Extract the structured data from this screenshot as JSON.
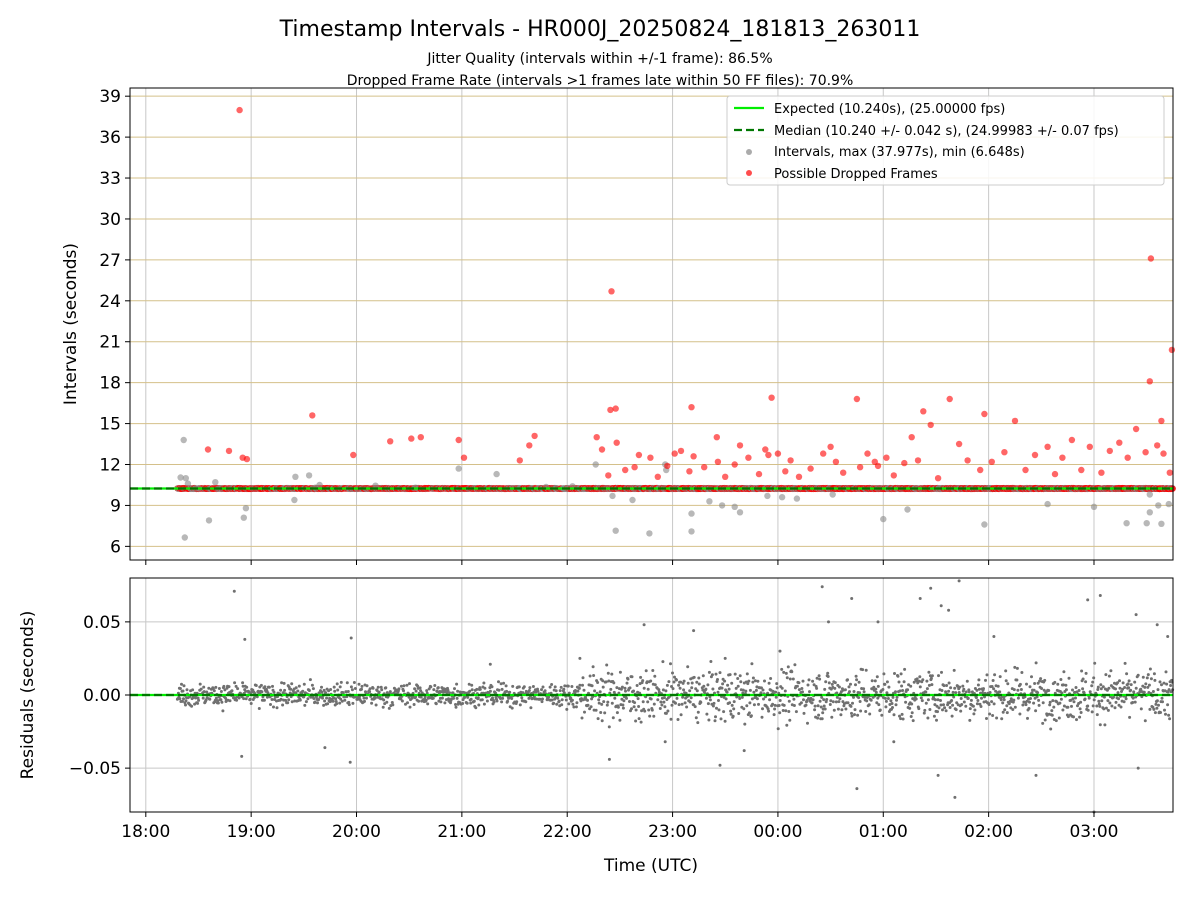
{
  "chart_data": [
    {
      "type": "scatter",
      "title": "Timestamp Intervals - HR000J_20250824_181813_263011",
      "subtitle_lines": [
        "Jitter Quality (intervals within +/-1 frame): 86.5%",
        "Dropped Frame Rate (intervals >1 frames late within 50 FF files): 70.9%"
      ],
      "ylabel": "Intervals (seconds)",
      "xlim": [
        17.85,
        27.75
      ],
      "ylim": [
        5.0,
        39.6
      ],
      "yticks": [
        6,
        9,
        12,
        15,
        18,
        21,
        24,
        27,
        30,
        33,
        36,
        39
      ],
      "ytick_labels": [
        "6",
        "9",
        "12",
        "15",
        "18",
        "21",
        "24",
        "27",
        "30",
        "33",
        "36",
        "39"
      ],
      "grid": true,
      "legend_position": "top-right",
      "expected_interval": 10.24,
      "median_interval": 10.24,
      "series": [
        {
          "name": "Expected (10.240s), (25.00000 fps)",
          "kind": "line",
          "color": "#00ee00",
          "style": "solid"
        },
        {
          "name": "Median (10.240 +/- 0.042 s), (24.99983 +/- 0.07 fps)",
          "kind": "line",
          "color": "#007700",
          "style": "dashed"
        },
        {
          "name": "Intervals, max (37.977s), min (6.648s)",
          "kind": "scatter",
          "color": "#888888",
          "points": [
            [
              18.33,
              11.05
            ],
            [
              18.36,
              13.8
            ],
            [
              18.37,
              6.65
            ],
            [
              18.38,
              11.0
            ],
            [
              18.4,
              10.6
            ],
            [
              18.5,
              10.25
            ],
            [
              18.6,
              7.9
            ],
            [
              18.66,
              10.7
            ],
            [
              18.93,
              8.1
            ],
            [
              18.95,
              8.8
            ],
            [
              19.41,
              9.4
            ],
            [
              19.42,
              11.1
            ],
            [
              19.55,
              11.2
            ],
            [
              19.61,
              10.3
            ],
            [
              19.65,
              10.5
            ],
            [
              20.18,
              10.45
            ],
            [
              20.56,
              10.3
            ],
            [
              20.97,
              11.7
            ],
            [
              21.33,
              11.3
            ],
            [
              21.8,
              10.35
            ],
            [
              22.05,
              10.4
            ],
            [
              22.27,
              12.0
            ],
            [
              22.43,
              9.7
            ],
            [
              22.46,
              7.15
            ],
            [
              22.62,
              9.4
            ],
            [
              22.78,
              6.95
            ],
            [
              22.93,
              12.0
            ],
            [
              22.94,
              11.6
            ],
            [
              23.18,
              8.4
            ],
            [
              23.18,
              7.1
            ],
            [
              23.35,
              9.3
            ],
            [
              23.47,
              9.0
            ],
            [
              23.59,
              8.9
            ],
            [
              23.64,
              8.5
            ],
            [
              23.9,
              9.7
            ],
            [
              24.04,
              9.6
            ],
            [
              24.18,
              9.5
            ],
            [
              24.52,
              9.8
            ],
            [
              25.0,
              8.0
            ],
            [
              25.23,
              8.7
            ],
            [
              25.96,
              7.6
            ],
            [
              26.56,
              9.1
            ],
            [
              27.0,
              8.9
            ],
            [
              27.31,
              7.7
            ],
            [
              27.5,
              7.7
            ],
            [
              27.53,
              8.5
            ],
            [
              27.53,
              9.8
            ],
            [
              27.61,
              9.0
            ],
            [
              27.64,
              7.65
            ],
            [
              27.71,
              9.1
            ]
          ]
        },
        {
          "name": "Possible Dropped Frames",
          "kind": "scatter",
          "color": "#ff0000",
          "points": [
            [
              18.89,
              37.98
            ],
            [
              18.59,
              13.1
            ],
            [
              18.79,
              13.0
            ],
            [
              18.92,
              12.5
            ],
            [
              18.96,
              12.4
            ],
            [
              19.58,
              15.6
            ],
            [
              19.97,
              12.7
            ],
            [
              20.32,
              13.7
            ],
            [
              20.52,
              13.9
            ],
            [
              20.61,
              14.0
            ],
            [
              20.97,
              13.8
            ],
            [
              21.02,
              12.5
            ],
            [
              21.55,
              12.3
            ],
            [
              21.64,
              13.4
            ],
            [
              21.69,
              14.1
            ],
            [
              22.28,
              14.0
            ],
            [
              22.33,
              13.1
            ],
            [
              22.39,
              11.2
            ],
            [
              22.41,
              16.0
            ],
            [
              22.42,
              24.7
            ],
            [
              22.46,
              16.1
            ],
            [
              22.47,
              13.6
            ],
            [
              22.55,
              11.6
            ],
            [
              22.64,
              11.8
            ],
            [
              22.68,
              12.7
            ],
            [
              22.79,
              12.5
            ],
            [
              22.86,
              11.1
            ],
            [
              22.95,
              11.9
            ],
            [
              23.02,
              12.8
            ],
            [
              23.08,
              13.0
            ],
            [
              23.16,
              11.5
            ],
            [
              23.18,
              16.2
            ],
            [
              23.2,
              12.6
            ],
            [
              23.3,
              11.8
            ],
            [
              23.42,
              14.0
            ],
            [
              23.43,
              12.2
            ],
            [
              23.5,
              11.1
            ],
            [
              23.59,
              12.0
            ],
            [
              23.64,
              13.4
            ],
            [
              23.72,
              12.5
            ],
            [
              23.82,
              11.3
            ],
            [
              23.88,
              13.1
            ],
            [
              23.91,
              12.7
            ],
            [
              23.94,
              16.9
            ],
            [
              24.0,
              12.8
            ],
            [
              24.07,
              11.5
            ],
            [
              24.12,
              12.3
            ],
            [
              24.2,
              11.1
            ],
            [
              24.31,
              11.7
            ],
            [
              24.43,
              12.8
            ],
            [
              24.5,
              13.3
            ],
            [
              24.55,
              12.2
            ],
            [
              24.62,
              11.4
            ],
            [
              24.75,
              16.8
            ],
            [
              24.78,
              11.8
            ],
            [
              24.85,
              12.8
            ],
            [
              24.92,
              12.2
            ],
            [
              24.95,
              11.9
            ],
            [
              25.03,
              12.5
            ],
            [
              25.1,
              11.2
            ],
            [
              25.2,
              12.1
            ],
            [
              25.27,
              14.0
            ],
            [
              25.33,
              12.3
            ],
            [
              25.38,
              15.9
            ],
            [
              25.45,
              14.9
            ],
            [
              25.52,
              11.0
            ],
            [
              25.63,
              16.8
            ],
            [
              25.72,
              13.5
            ],
            [
              25.8,
              12.3
            ],
            [
              25.92,
              11.6
            ],
            [
              25.96,
              15.7
            ],
            [
              26.03,
              12.2
            ],
            [
              26.15,
              12.9
            ],
            [
              26.25,
              15.2
            ],
            [
              26.35,
              11.6
            ],
            [
              26.44,
              12.7
            ],
            [
              26.56,
              13.3
            ],
            [
              26.63,
              11.3
            ],
            [
              26.7,
              12.5
            ],
            [
              26.79,
              13.8
            ],
            [
              26.88,
              11.6
            ],
            [
              26.96,
              13.3
            ],
            [
              27.07,
              11.4
            ],
            [
              27.15,
              13.0
            ],
            [
              27.24,
              13.6
            ],
            [
              27.32,
              12.5
            ],
            [
              27.4,
              14.6
            ],
            [
              27.49,
              12.9
            ],
            [
              27.53,
              18.1
            ],
            [
              27.54,
              27.1
            ],
            [
              27.6,
              13.4
            ],
            [
              27.64,
              15.2
            ],
            [
              27.66,
              12.8
            ],
            [
              27.74,
              20.4
            ],
            [
              27.72,
              11.4
            ]
          ]
        }
      ]
    },
    {
      "type": "scatter",
      "ylabel": "Residuals (seconds)",
      "xlabel": "Time (UTC)",
      "xlim": [
        17.85,
        27.75
      ],
      "ylim": [
        -0.08,
        0.08
      ],
      "yticks": [
        -0.05,
        0.0,
        0.05
      ],
      "ytick_labels": [
        "−0.05",
        "0.00",
        "0.05"
      ],
      "xticks": [
        18,
        19,
        20,
        21,
        22,
        23,
        24,
        25,
        26,
        27
      ],
      "xtick_labels": [
        "18:00",
        "19:00",
        "20:00",
        "21:00",
        "22:00",
        "23:00",
        "00:00",
        "01:00",
        "02:00",
        "03:00"
      ],
      "grid": true,
      "series": [
        {
          "kind": "line",
          "color": "#00ee00",
          "style": "solid",
          "value": 0.0
        },
        {
          "kind": "line",
          "color": "#007700",
          "style": "dashed",
          "value": 0.0
        },
        {
          "kind": "scatter",
          "color": "#707070",
          "outliers": [
            [
              18.84,
              0.071
            ],
            [
              18.94,
              0.038
            ],
            [
              18.91,
              -0.042
            ],
            [
              19.7,
              -0.036
            ],
            [
              19.95,
              0.039
            ],
            [
              19.94,
              -0.046
            ],
            [
              21.27,
              0.021
            ],
            [
              22.12,
              0.025
            ],
            [
              22.4,
              -0.044
            ],
            [
              22.73,
              0.048
            ],
            [
              22.93,
              -0.032
            ],
            [
              23.2,
              0.044
            ],
            [
              23.45,
              -0.048
            ],
            [
              23.5,
              0.025
            ],
            [
              23.68,
              -0.038
            ],
            [
              24.02,
              0.03
            ],
            [
              24.42,
              0.074
            ],
            [
              24.48,
              0.05
            ],
            [
              24.7,
              0.066
            ],
            [
              24.75,
              -0.064
            ],
            [
              24.95,
              0.05
            ],
            [
              25.1,
              -0.032
            ],
            [
              25.35,
              0.066
            ],
            [
              25.45,
              0.073
            ],
            [
              25.52,
              -0.055
            ],
            [
              25.55,
              0.061
            ],
            [
              25.62,
              0.058
            ],
            [
              25.68,
              -0.07
            ],
            [
              25.72,
              0.078
            ],
            [
              26.05,
              0.04
            ],
            [
              26.45,
              -0.055
            ],
            [
              26.94,
              0.065
            ],
            [
              27.06,
              0.068
            ],
            [
              27.0,
              -0.08
            ],
            [
              27.4,
              0.055
            ],
            [
              27.42,
              -0.05
            ],
            [
              27.6,
              0.048
            ],
            [
              27.7,
              0.04
            ]
          ]
        }
      ]
    }
  ]
}
